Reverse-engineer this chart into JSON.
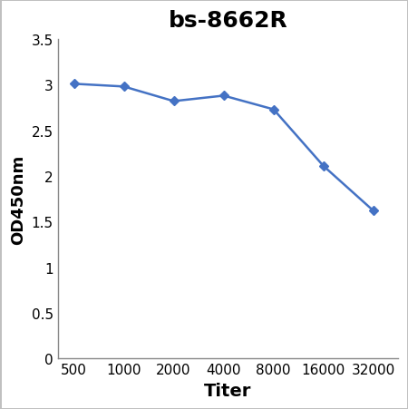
{
  "title": "bs-8662R",
  "xlabel": "Titer",
  "ylabel": "OD450nm",
  "x_values": [
    500,
    1000,
    2000,
    4000,
    8000,
    16000,
    32000
  ],
  "y_values": [
    3.01,
    2.98,
    2.82,
    2.88,
    2.73,
    2.11,
    1.62
  ],
  "line_color": "#4472C4",
  "marker": "D",
  "marker_size": 5,
  "ylim": [
    0,
    3.5
  ],
  "yticks": [
    0,
    0.5,
    1,
    1.5,
    2,
    2.5,
    3,
    3.5
  ],
  "title_fontsize": 18,
  "xlabel_fontsize": 14,
  "ylabel_fontsize": 13,
  "tick_fontsize": 11,
  "background_color": "#ffffff",
  "border_color": "#c0c0c0"
}
